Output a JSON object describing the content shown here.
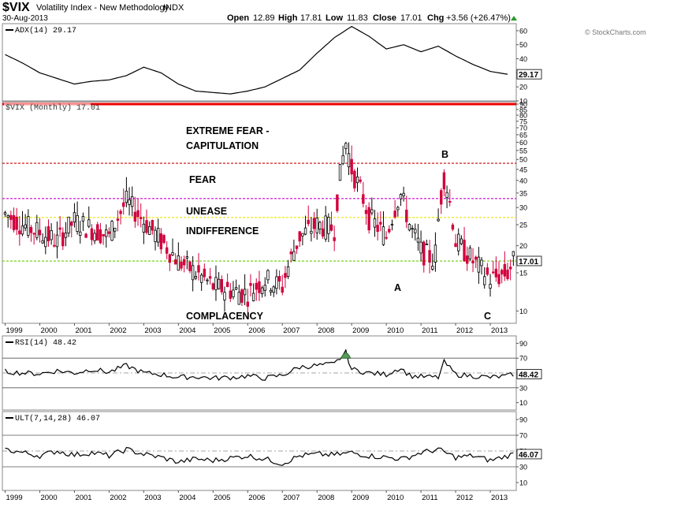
{
  "header": {
    "symbol": "$VIX",
    "name": "Volatility Index - New Methodology",
    "exchange": "INDX",
    "date": "30-Aug-2013",
    "open_label": "Open",
    "open": "12.89",
    "high_label": "High",
    "high": "17.81",
    "low_label": "Low",
    "low": "11.83",
    "close_label": "Close",
    "close": "17.01",
    "chg_label": "Chg",
    "chg": "+3.56 (+26.47%)",
    "watermark": "© StockCharts.com"
  },
  "colors": {
    "up_bar": "#000000",
    "down_bar": "#d2003c",
    "extreme_line": "#ee0000",
    "fear_line": "#cc0000",
    "unease_line": "#cc00cc",
    "indifference_line": "#e6e600",
    "complacency_line": "#66cc00",
    "rsi_overbought_fill": "#5a9a5a"
  },
  "chart_data": [
    {
      "type": "line",
      "panel": "adx",
      "title": "ADX(14) 29.17",
      "last_value": "29.17",
      "ylim": [
        10,
        65
      ],
      "yticks": [
        "60",
        "50",
        "40",
        "30",
        "20",
        "10"
      ],
      "x": [
        1999.0,
        1999.5,
        2000.0,
        2000.5,
        2001.0,
        2001.5,
        2002.0,
        2002.5,
        2003.0,
        2003.5,
        2004.0,
        2004.5,
        2005.0,
        2005.5,
        2006.0,
        2006.5,
        2007.0,
        2007.5,
        2008.0,
        2008.5,
        2009.0,
        2009.5,
        2010.0,
        2010.5,
        2011.0,
        2011.5,
        2012.0,
        2012.5,
        2013.0,
        2013.5
      ],
      "values": [
        43,
        37,
        30,
        26,
        22,
        24,
        25,
        28,
        34,
        30,
        22,
        17,
        16,
        15,
        17,
        20,
        26,
        32,
        44,
        55,
        63,
        56,
        47,
        50,
        45,
        49,
        42,
        36,
        31,
        29
      ]
    },
    {
      "type": "bar",
      "panel": "price",
      "title": "$VIX (Monthly) 17.01",
      "last_value": "17.01",
      "ylim": [
        9,
        90
      ],
      "log_scale": true,
      "yticks": [
        "90",
        "85",
        "80",
        "75",
        "70",
        "65",
        "60",
        "55",
        "50",
        "45",
        "40",
        "35",
        "30",
        "25",
        "20",
        "15",
        "10"
      ],
      "x_ticks": [
        "1999",
        "2000",
        "2001",
        "2002",
        "2003",
        "2004",
        "2005",
        "2006",
        "2007",
        "2008",
        "2009",
        "2010",
        "2011",
        "2012",
        "2013"
      ],
      "x": [
        1999.0,
        1999.5,
        2000.0,
        2000.5,
        2001.0,
        2001.5,
        2002.0,
        2002.5,
        2003.0,
        2003.5,
        2004.0,
        2004.5,
        2005.0,
        2005.5,
        2006.0,
        2006.5,
        2007.0,
        2007.5,
        2008.0,
        2008.5,
        2008.83,
        2009.0,
        2009.5,
        2010.0,
        2010.4,
        2010.7,
        2011.0,
        2011.4,
        2011.67,
        2012.0,
        2012.5,
        2013.0,
        2013.5,
        2013.67
      ],
      "values": [
        28,
        25,
        23,
        21,
        26,
        24,
        22,
        32,
        26,
        21,
        17,
        15,
        13,
        12.5,
        12,
        14,
        13,
        22,
        25,
        24,
        60,
        45,
        27,
        22,
        35,
        24,
        19,
        17,
        42,
        21,
        17,
        14,
        15,
        17.01
      ],
      "levels": [
        {
          "label": "EXTREME FEAR -",
          "value": 90
        },
        {
          "label": "FEAR",
          "value": 48
        },
        {
          "label": "UNEASE",
          "value": 33
        },
        {
          "label": "INDIFFERENCE",
          "value": 27
        },
        {
          "label": "COMPLACENCY",
          "value": 17
        }
      ],
      "annotations": [
        "EXTREME FEAR -",
        "CAPITULATION",
        "FEAR",
        "UNEASE",
        "INDIFFERENCE",
        "COMPLACENCY",
        "A",
        "B",
        "C"
      ]
    },
    {
      "type": "line",
      "panel": "rsi",
      "title": "RSI(14) 48.42",
      "last_value": "48.42",
      "ylim": [
        0,
        100
      ],
      "yticks": [
        "90",
        "70",
        "50",
        "30",
        "10"
      ],
      "guides": [
        70,
        30
      ],
      "x": [
        1999.0,
        1999.5,
        2000.0,
        2000.5,
        2001.0,
        2001.5,
        2002.0,
        2002.5,
        2003.0,
        2003.5,
        2004.0,
        2004.5,
        2005.0,
        2005.5,
        2006.0,
        2006.5,
        2007.0,
        2007.5,
        2008.0,
        2008.5,
        2008.83,
        2009.0,
        2009.5,
        2010.0,
        2010.4,
        2010.7,
        2011.0,
        2011.5,
        2011.67,
        2012.0,
        2012.5,
        2013.0,
        2013.5,
        2013.67
      ],
      "values": [
        52,
        50,
        49,
        53,
        50,
        55,
        51,
        60,
        50,
        48,
        44,
        45,
        43,
        44,
        46,
        43,
        47,
        58,
        60,
        62,
        78,
        55,
        50,
        48,
        57,
        46,
        45,
        44,
        65,
        48,
        46,
        44,
        46,
        48.42
      ]
    },
    {
      "type": "line",
      "panel": "ult",
      "title": "ULT(7,14,28) 46.07",
      "last_value": "46.07",
      "ylim": [
        0,
        100
      ],
      "yticks": [
        "90",
        "70",
        "50",
        "30",
        "10"
      ],
      "guides": [
        70,
        30
      ],
      "x": [
        1999.0,
        1999.5,
        2000.0,
        2000.5,
        2001.0,
        2001.5,
        2002.0,
        2002.5,
        2003.0,
        2003.5,
        2004.0,
        2004.5,
        2005.0,
        2005.5,
        2006.0,
        2006.5,
        2007.0,
        2007.5,
        2008.0,
        2008.5,
        2009.0,
        2009.5,
        2010.0,
        2010.5,
        2011.0,
        2011.5,
        2012.0,
        2012.5,
        2013.0,
        2013.5,
        2013.67
      ],
      "values": [
        52,
        48,
        44,
        50,
        45,
        48,
        44,
        52,
        46,
        42,
        36,
        40,
        38,
        41,
        44,
        40,
        34,
        44,
        46,
        45,
        48,
        44,
        42,
        40,
        48,
        52,
        42,
        44,
        38,
        44,
        46.07
      ]
    }
  ]
}
